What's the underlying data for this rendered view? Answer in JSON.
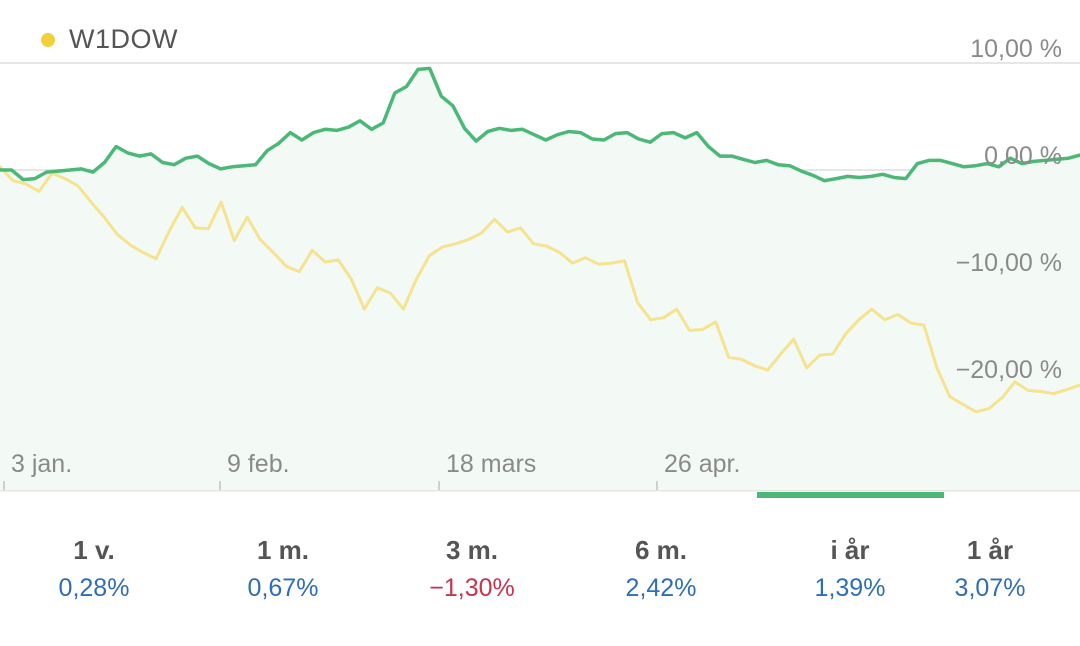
{
  "legend": {
    "label": "W1DOW",
    "color": "#f4cf3c"
  },
  "chart_data": {
    "type": "line",
    "x_ticks": [
      "3 jan.",
      "9 feb.",
      "18 mars",
      "26 apr."
    ],
    "y_ticks": [
      "10,00 %",
      "0,00 %",
      "−10,00 %",
      "−20,00 %"
    ],
    "ylim": [
      -25,
      12
    ],
    "grid": true,
    "series": [
      {
        "color": "#4cb877",
        "values": [
          0.0,
          0.0,
          -0.9,
          -0.8,
          -0.2,
          -0.1,
          0.0,
          0.1,
          -0.2,
          0.7,
          2.2,
          1.6,
          1.3,
          1.5,
          0.7,
          0.5,
          1.1,
          1.3,
          0.6,
          0.1,
          0.3,
          0.4,
          0.5,
          1.8,
          2.5,
          3.5,
          2.8,
          3.5,
          3.8,
          3.7,
          4.0,
          4.6,
          3.8,
          4.4,
          7.2,
          7.8,
          9.4,
          9.5,
          6.9,
          6.0,
          3.9,
          2.7,
          3.6,
          3.9,
          3.7,
          3.8,
          3.3,
          2.8,
          3.3,
          3.6,
          3.5,
          2.9,
          2.8,
          3.4,
          3.5,
          2.9,
          2.6,
          3.4,
          3.5,
          3.0,
          3.5,
          2.2,
          1.3,
          1.3,
          1.0,
          0.7,
          0.9,
          0.5,
          0.4,
          -0.1,
          -0.5,
          -1.0,
          -0.8,
          -0.6,
          -0.7,
          -0.6,
          -0.4,
          -0.7,
          -0.8,
          0.6,
          0.9,
          0.9,
          0.6,
          0.3,
          0.4,
          0.6,
          0.3,
          1.1,
          0.6,
          0.8,
          0.9,
          1.0,
          1.1,
          1.4
        ]
      },
      {
        "color": "#f5e38f",
        "values": [
          0.3,
          -1.0,
          -1.3,
          -2.0,
          -0.3,
          -0.8,
          -1.5,
          -3.0,
          -4.4,
          -6.0,
          -7.0,
          -7.7,
          -8.3,
          -5.7,
          -3.5,
          -5.4,
          -5.5,
          -3.0,
          -6.6,
          -4.4,
          -6.5,
          -7.7,
          -9.0,
          -9.5,
          -7.5,
          -8.6,
          -8.4,
          -10.2,
          -13.0,
          -11.0,
          -11.5,
          -13.0,
          -10.2,
          -8.0,
          -7.2,
          -6.9,
          -6.5,
          -5.9,
          -4.6,
          -5.8,
          -5.4,
          -6.9,
          -7.1,
          -7.7,
          -8.7,
          -8.2,
          -8.8,
          -8.7,
          -8.5,
          -12.4,
          -14.0,
          -13.8,
          -13.0,
          -15.0,
          -14.9,
          -14.2,
          -17.5,
          -17.7,
          -18.3,
          -18.7,
          -17.2,
          -15.8,
          -18.5,
          -17.3,
          -17.2,
          -15.3,
          -14.0,
          -13.0,
          -14.0,
          -13.5,
          -14.3,
          -14.5,
          -18.5,
          -21.2,
          -21.9,
          -22.6,
          -22.3,
          -21.3,
          -19.8,
          -20.6,
          -20.7,
          -20.9,
          -20.5,
          -20.1
        ]
      }
    ]
  },
  "periods": [
    {
      "label": "1 v.",
      "value": "0,28%",
      "negative": false
    },
    {
      "label": "1 m.",
      "value": "0,67%",
      "negative": false
    },
    {
      "label": "3 m.",
      "value": "−1,30%",
      "negative": true
    },
    {
      "label": "6 m.",
      "value": "2,42%",
      "negative": false
    },
    {
      "label": "i år",
      "value": "1,39%",
      "negative": false
    },
    {
      "label": "1 år",
      "value": "3,07%",
      "negative": false
    }
  ],
  "selected_period": 4
}
